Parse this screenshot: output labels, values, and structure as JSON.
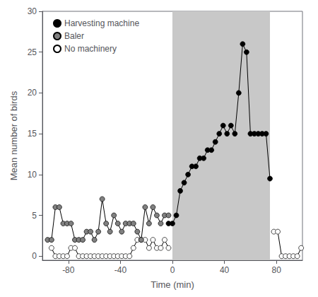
{
  "chart_data": {
    "type": "line",
    "xlabel": "Time (min)",
    "ylabel": "Mean number of birds",
    "xlim": [
      -100,
      100
    ],
    "ylim": [
      -0.5,
      30
    ],
    "xticks": [
      -80,
      -40,
      0,
      40,
      80
    ],
    "yticks": [
      0,
      5,
      10,
      15,
      20,
      25,
      30
    ],
    "grid": false,
    "legend": "upper left",
    "marker": "circle",
    "shaded": {
      "x": [
        0,
        75
      ],
      "color": "#c8c8c8"
    },
    "series": [
      {
        "name": "Harvesting machine",
        "color": "#000000",
        "x": [
          -3,
          0,
          3,
          6,
          9,
          12,
          15,
          18,
          21,
          24,
          27,
          30,
          33,
          36,
          39,
          42,
          45,
          48,
          51,
          54,
          57,
          60,
          63,
          66,
          69,
          72,
          75
        ],
        "values": [
          4,
          4,
          5,
          8,
          9,
          10,
          11,
          11,
          12,
          12,
          13,
          13,
          14,
          15,
          16,
          15,
          16,
          15,
          20,
          26,
          25,
          15,
          15,
          15,
          15,
          15,
          9.5
        ]
      },
      {
        "name": "Baler",
        "color": "#808080",
        "x": [
          -96,
          -93,
          -90,
          -87,
          -84,
          -81,
          -78,
          -75,
          -72,
          -69,
          -66,
          -63,
          -60,
          -57,
          -54,
          -51,
          -48,
          -45,
          -42,
          -39,
          -36,
          -33,
          -30,
          -27,
          -24,
          -21,
          -18,
          -15,
          -12,
          -9,
          -6,
          -3
        ],
        "values": [
          2,
          2,
          6,
          6,
          4,
          4,
          4,
          2,
          2,
          2,
          3,
          3,
          2,
          3,
          7,
          4,
          3,
          5,
          4,
          3,
          4,
          4,
          4,
          3,
          2,
          6,
          4,
          6,
          5,
          4,
          5,
          5
        ]
      },
      {
        "name": "No machinery",
        "color": "#ffffff",
        "x": [
          -93,
          -90,
          -87,
          -84,
          -81,
          -78,
          -75,
          -72,
          -69,
          -66,
          -63,
          -60,
          -57,
          -54,
          -51,
          -48,
          -45,
          -42,
          -39,
          -36,
          -33,
          -30,
          -27,
          -24,
          -21,
          -18,
          -15,
          -12,
          -9,
          -6,
          -3
        ],
        "values": [
          1,
          0,
          0,
          0,
          0,
          1,
          1,
          0,
          0,
          0,
          0,
          0,
          0,
          0,
          0,
          0,
          0,
          0,
          0,
          0,
          0,
          1,
          2,
          2,
          2,
          1,
          2,
          1,
          1,
          2,
          1
        ]
      },
      {
        "name": "No machinery",
        "color": "#ffffff",
        "x": [
          78,
          81,
          84,
          87,
          90,
          93,
          96,
          99
        ],
        "values": [
          3,
          3,
          0,
          0,
          0,
          0,
          0,
          1
        ]
      }
    ]
  }
}
